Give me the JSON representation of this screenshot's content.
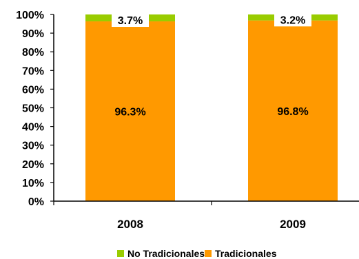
{
  "chart_data": {
    "type": "bar",
    "stacked": true,
    "percent_stacked": true,
    "categories": [
      "2008",
      "2009"
    ],
    "series": [
      {
        "name": "Tradicionales",
        "values": [
          96.3,
          96.8
        ],
        "color": "#FF9900",
        "labels": [
          "96.3%",
          "96.8%"
        ]
      },
      {
        "name": "No Tradicionales",
        "values": [
          3.7,
          3.2
        ],
        "color": "#99CC00",
        "labels": [
          "3.7%",
          "3.2%"
        ]
      }
    ],
    "ylim": [
      0,
      100
    ],
    "yticks": [
      "0%",
      "10%",
      "20%",
      "30%",
      "40%",
      "50%",
      "60%",
      "70%",
      "80%",
      "90%",
      "100%"
    ],
    "grid": false,
    "legend": {
      "position": "bottom",
      "entries": [
        {
          "name": "No Tradicionales",
          "color": "#99CC00"
        },
        {
          "name": "Tradicionales",
          "color": "#FF9900"
        }
      ]
    },
    "colors": {
      "label_box": "#FFFFFF"
    }
  }
}
